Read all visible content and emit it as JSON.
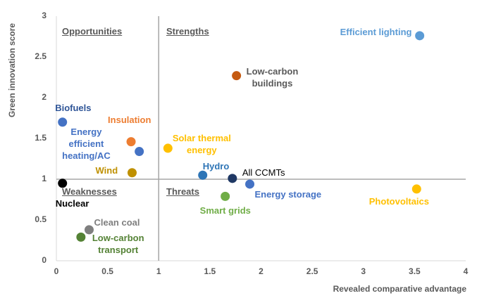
{
  "chart_data": {
    "type": "scatter",
    "xlabel": "Revealed comparative advantage",
    "ylabel": "Green innovation score",
    "xlim": [
      0,
      4
    ],
    "ylim": [
      0,
      3
    ],
    "xticks": [
      0,
      0.5,
      1,
      1.5,
      2,
      2.5,
      3,
      3.5,
      4
    ],
    "yticks": [
      0,
      0.5,
      1,
      1.5,
      2,
      2.5,
      3
    ],
    "reference_lines": {
      "x": 1,
      "y": 1
    },
    "annotations": [
      "Opportunities",
      "Strengths",
      "Weaknesses",
      "Threats"
    ],
    "series": [
      {
        "name": "Efficient lighting",
        "color": "#5b9bd5",
        "label_color": "#5b9bd5",
        "x": [
          3.55
        ],
        "values": [
          2.76
        ]
      },
      {
        "name": "Low-carbon\nbuildings",
        "color": "#c55a11",
        "label_color": "#595959",
        "x": [
          1.76
        ],
        "values": [
          2.27
        ]
      },
      {
        "name": "Biofuels",
        "color": "#4472c4",
        "label_color": "#2f5597",
        "x": [
          0.06
        ],
        "values": [
          1.7
        ]
      },
      {
        "name": "Insulation",
        "color": "#ed7d31",
        "label_color": "#ed7d31",
        "x": [
          0.73
        ],
        "values": [
          1.46
        ]
      },
      {
        "name": "Energy\nefficient\nheating/AC",
        "color": "#4472c4",
        "label_color": "#4472c4",
        "x": [
          0.81
        ],
        "values": [
          1.34
        ]
      },
      {
        "name": "Solar thermal\nenergy",
        "color": "#ffc000",
        "label_color": "#ffc000",
        "x": [
          1.09
        ],
        "values": [
          1.38
        ]
      },
      {
        "name": "Wind",
        "color": "#bf9000",
        "label_color": "#bf9000",
        "x": [
          0.74
        ],
        "values": [
          1.08
        ]
      },
      {
        "name": "Hydro",
        "color": "#2e75b6",
        "label_color": "#2e75b6",
        "x": [
          1.43
        ],
        "values": [
          1.05
        ]
      },
      {
        "name": "All CCMTs",
        "color": "#1f3864",
        "label_color": "#000000",
        "x": [
          1.72
        ],
        "values": [
          1.01
        ]
      },
      {
        "name": "Energy storage",
        "color": "#4472c4",
        "label_color": "#4472c4",
        "x": [
          1.89
        ],
        "values": [
          0.94
        ]
      },
      {
        "name": "Photovoltaics",
        "color": "#ffc000",
        "label_color": "#ffc000",
        "x": [
          3.52
        ],
        "values": [
          0.88
        ]
      },
      {
        "name": "Smart grids",
        "color": "#70ad47",
        "label_color": "#70ad47",
        "x": [
          1.65
        ],
        "values": [
          0.79
        ]
      },
      {
        "name": "Nuclear",
        "color": "#000000",
        "label_color": "#000000",
        "x": [
          0.06
        ],
        "values": [
          0.95
        ]
      },
      {
        "name": "Clean coal",
        "color": "#7f7f7f",
        "label_color": "#7f7f7f",
        "x": [
          0.32
        ],
        "values": [
          0.38
        ]
      },
      {
        "name": "Low-carbon\ntransport",
        "color": "#548235",
        "label_color": "#548235",
        "x": [
          0.24
        ],
        "values": [
          0.29
        ]
      }
    ]
  }
}
